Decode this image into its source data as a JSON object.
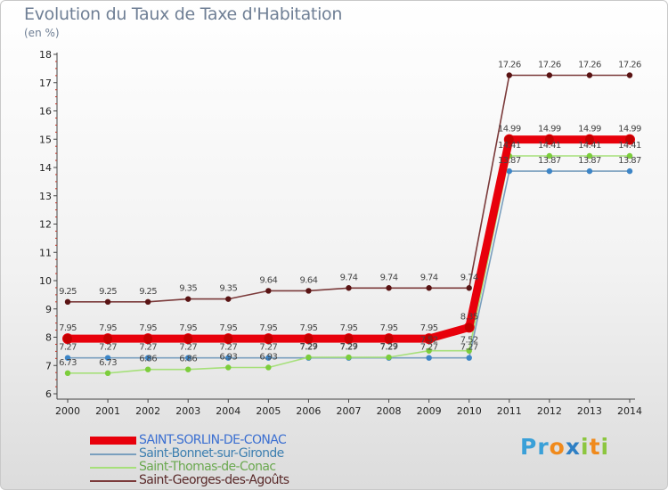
{
  "title": "Evolution du Taux de Taxe d'Habitation",
  "unit": "(en %)",
  "brand": {
    "text": "Proxiti",
    "letter_colors": [
      "#3aa0d8",
      "#3aa0d8",
      "#f08a1c",
      "#2e7fc4",
      "#8cc63f",
      "#f08a1c",
      "#8cc63f"
    ]
  },
  "chart_data": {
    "type": "line",
    "title": "Evolution du Taux de Taxe d'Habitation",
    "ylabel": "(en %)",
    "xlabel": "",
    "ylim": [
      6,
      18
    ],
    "yticks": [
      "6",
      "7",
      "8",
      "9",
      "10",
      "11",
      "12",
      "13",
      "14",
      "15",
      "16",
      "17",
      "18"
    ],
    "grid": false,
    "legend_position": "bottom-left",
    "x": [
      "2000",
      "2001",
      "2002",
      "2003",
      "2004",
      "2005",
      "2006",
      "2007",
      "2008",
      "2009",
      "2010",
      "2011",
      "2012",
      "2013",
      "2014"
    ],
    "series": [
      {
        "name": "SAINT-SORLIN-DE-CONAC",
        "color": "#e8000b",
        "marker_color": "#c40000",
        "emphasis": true,
        "values": [
          7.95,
          7.95,
          7.95,
          7.95,
          7.95,
          7.95,
          7.95,
          7.95,
          7.95,
          7.95,
          8.35,
          14.99,
          14.99,
          14.99,
          14.99
        ],
        "labels": [
          "7.95",
          "7.95",
          "7.95",
          "7.95",
          "7.95",
          "7.95",
          "7.95",
          "7.95",
          "7.95",
          "7.95",
          "8.35",
          "14.99",
          "14.99",
          "14.99",
          "14.99"
        ]
      },
      {
        "name": "Saint-Bonnet-sur-Gironde",
        "color": "#7a9fbe",
        "marker_color": "#3d85c6",
        "emphasis": false,
        "values": [
          7.27,
          7.27,
          7.27,
          7.27,
          7.27,
          7.27,
          7.27,
          7.27,
          7.27,
          7.27,
          7.27,
          13.87,
          13.87,
          13.87,
          13.87
        ],
        "labels": [
          "7.27",
          "7.27",
          "7.27",
          "7.27",
          "7.27",
          "7.27",
          "7.27",
          "7.27",
          "7.27",
          "7.27",
          "7.27",
          "13.87",
          "13.87",
          "13.87",
          "13.87"
        ]
      },
      {
        "name": "Saint-Thomas-de-Conac",
        "color": "#a6e07a",
        "marker_color": "#7ccd3c",
        "emphasis": false,
        "values": [
          6.73,
          6.73,
          6.86,
          6.86,
          6.93,
          6.93,
          7.29,
          7.29,
          7.29,
          7.52,
          7.52,
          14.41,
          14.41,
          14.41,
          14.41
        ],
        "labels": [
          "6.73",
          "6.73",
          "6.86",
          "6.86",
          "6.93",
          "6.93",
          "7.29",
          "7.29",
          "7.29",
          "7.52",
          "7.52",
          "14.41",
          "14.41",
          "14.41",
          "14.41"
        ]
      },
      {
        "name": "Saint-Georges-des-Agoûts",
        "color": "#7b3a3a",
        "marker_color": "#5a1414",
        "emphasis": false,
        "values": [
          9.25,
          9.25,
          9.25,
          9.35,
          9.35,
          9.64,
          9.64,
          9.74,
          9.74,
          9.74,
          9.74,
          17.26,
          17.26,
          17.26,
          17.26
        ],
        "labels": [
          "9.25",
          "9.25",
          "9.25",
          "9.35",
          "9.35",
          "9.64",
          "9.64",
          "9.74",
          "9.74",
          "9.74",
          "9.74",
          "17.26",
          "17.26",
          "17.26",
          "17.26"
        ]
      }
    ],
    "legend": [
      "SAINT-SORLIN-DE-CONAC",
      "Saint-Bonnet-sur-Gironde",
      "Saint-Thomas-de-Conac",
      "Saint-Georges-des-Agoûts"
    ],
    "legend_colors": [
      "#3b6fd1",
      "#3d7fb0",
      "#6aa84f",
      "#5a2a2a"
    ]
  }
}
